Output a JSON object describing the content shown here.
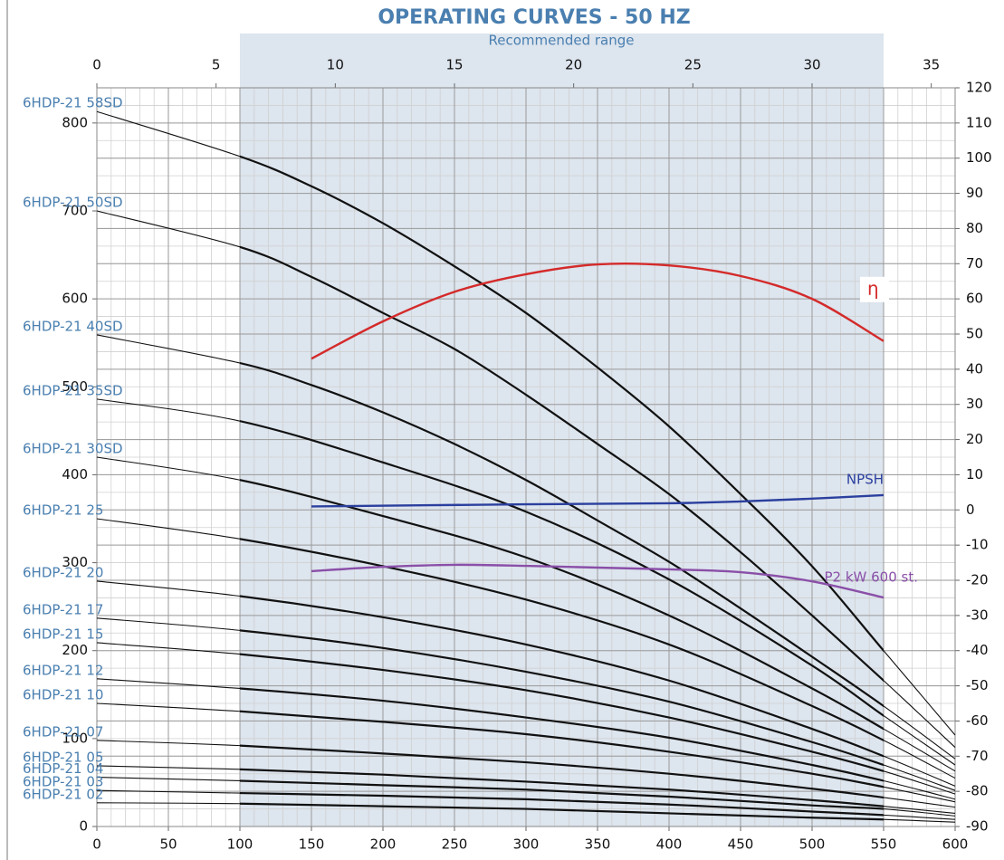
{
  "chart_data": {
    "type": "line",
    "title": "OPERATING CURVES - 50 HZ",
    "subtitle": "Recommended range",
    "recommended_range": [
      100,
      550
    ],
    "xlim": [
      0,
      600
    ],
    "xticks": [
      0,
      50,
      100,
      150,
      200,
      250,
      300,
      350,
      400,
      450,
      500,
      550,
      600
    ],
    "x2lim": [
      0,
      36
    ],
    "x2ticks": [
      0,
      5,
      10,
      15,
      20,
      25,
      30,
      35
    ],
    "ylim": [
      0,
      840
    ],
    "yticks": [
      0,
      100,
      200,
      300,
      400,
      500,
      600,
      700,
      800
    ],
    "y2lim": [
      -90,
      120
    ],
    "y2ticks": [
      -90,
      -80,
      -70,
      -60,
      -50,
      -40,
      -30,
      -20,
      -10,
      0,
      10,
      20,
      30,
      40,
      50,
      60,
      70,
      80,
      90,
      100,
      110,
      120
    ],
    "grid": true,
    "minor_grid": {
      "x": 10,
      "y2": 5
    },
    "series": [
      {
        "name": "6HDP-21 58SD",
        "color": "#111111",
        "x": [
          0,
          100,
          150,
          200,
          250,
          300,
          350,
          400,
          450,
          500,
          550,
          600
        ],
        "values": [
          813,
          762,
          728,
          686,
          637,
          584,
          522,
          455,
          378,
          296,
          200,
          104
        ]
      },
      {
        "name": "6HDP-21 50SD",
        "color": "#111111",
        "x": [
          0,
          100,
          150,
          200,
          250,
          300,
          350,
          400,
          450,
          500,
          550,
          600
        ],
        "values": [
          700,
          659,
          625,
          584,
          543,
          491,
          435,
          378,
          312,
          240,
          166,
          90
        ]
      },
      {
        "name": "6HDP-21 40SD",
        "color": "#111111",
        "x": [
          0,
          100,
          150,
          200,
          250,
          300,
          350,
          400,
          450,
          500,
          550,
          600
        ],
        "values": [
          559,
          527,
          502,
          471,
          435,
          394,
          348,
          301,
          248,
          193,
          137,
          77
        ]
      },
      {
        "name": "6HDP-21 35SD",
        "color": "#111111",
        "x": [
          0,
          100,
          200,
          300,
          400,
          500,
          550,
          600
        ],
        "values": [
          486,
          461,
          414,
          358,
          281,
          183,
          126,
          70
        ]
      },
      {
        "name": "6HDP-21 30SD",
        "color": "#111111",
        "x": [
          0,
          100,
          200,
          300,
          400,
          500,
          550,
          600
        ],
        "values": [
          420,
          394,
          353,
          306,
          240,
          157,
          111,
          63
        ]
      },
      {
        "name": "6HDP-21 25",
        "color": "#111111",
        "x": [
          0,
          100,
          200,
          300,
          400,
          500,
          550,
          600
        ],
        "values": [
          350,
          327,
          296,
          258,
          207,
          137,
          98,
          55
        ]
      },
      {
        "name": "6HDP-21 20",
        "color": "#111111",
        "x": [
          0,
          100,
          200,
          300,
          400,
          500,
          550,
          600
        ],
        "values": [
          279,
          262,
          238,
          207,
          166,
          111,
          80,
          46
        ]
      },
      {
        "name": "6HDP-21 17",
        "color": "#111111",
        "x": [
          0,
          100,
          200,
          300,
          400,
          500,
          550,
          600
        ],
        "values": [
          237,
          223,
          203,
          176,
          142,
          96,
          70,
          41
        ]
      },
      {
        "name": "6HDP-21 15",
        "color": "#111111",
        "x": [
          0,
          100,
          200,
          300,
          400,
          500,
          550,
          600
        ],
        "values": [
          209,
          196,
          178,
          155,
          124,
          85,
          63,
          37
        ]
      },
      {
        "name": "6HDP-21 12",
        "color": "#111111",
        "x": [
          0,
          100,
          200,
          300,
          400,
          500,
          550,
          600
        ],
        "values": [
          168,
          157,
          143,
          124,
          101,
          70,
          52,
          31
        ]
      },
      {
        "name": "6HDP-21 10",
        "color": "#111111",
        "x": [
          0,
          100,
          200,
          300,
          400,
          500,
          550,
          600
        ],
        "values": [
          140,
          131,
          119,
          105,
          85,
          60,
          45,
          28
        ]
      },
      {
        "name": "6HDP-21 07",
        "color": "#111111",
        "x": [
          0,
          100,
          200,
          300,
          400,
          500,
          550,
          600
        ],
        "values": [
          98,
          92,
          83,
          73,
          60,
          43,
          33,
          22
        ]
      },
      {
        "name": "6HDP-21 05",
        "color": "#111111",
        "x": [
          0,
          100,
          200,
          300,
          400,
          500,
          550,
          600
        ],
        "values": [
          69,
          65,
          59,
          51,
          42,
          30,
          23,
          15
        ]
      },
      {
        "name": "6HDP-21 04",
        "color": "#111111",
        "x": [
          0,
          100,
          200,
          300,
          400,
          500,
          550,
          600
        ],
        "values": [
          56,
          52,
          47,
          42,
          34,
          24,
          20,
          12
        ]
      },
      {
        "name": "6HDP-21 03",
        "color": "#111111",
        "x": [
          0,
          100,
          200,
          300,
          400,
          500,
          550,
          600
        ],
        "values": [
          41,
          38,
          35,
          31,
          25,
          17,
          13,
          8
        ]
      },
      {
        "name": "6HDP-21 02",
        "color": "#111111",
        "x": [
          0,
          100,
          200,
          300,
          400,
          500,
          550,
          600
        ],
        "values": [
          27,
          26,
          23,
          20,
          15,
          10,
          8,
          5
        ]
      },
      {
        "name": "η",
        "color": "#d42a2a",
        "axis": "y2",
        "x": [
          150,
          200,
          250,
          300,
          350,
          400,
          450,
          500,
          550
        ],
        "values": [
          43,
          53.6,
          62,
          67,
          69.8,
          69.5,
          66.5,
          60,
          48
        ]
      },
      {
        "name": "NPSH",
        "color": "#2b3f9e",
        "axis": "y2",
        "x": [
          150,
          300,
          400,
          450,
          500,
          550
        ],
        "values": [
          1,
          1.6,
          1.9,
          2.4,
          3.2,
          4.2
        ]
      },
      {
        "name": "P2 kW 600 st.",
        "color": "#8a4fa8",
        "axis": "y2",
        "x": [
          150,
          200,
          250,
          300,
          350,
          400,
          450,
          500,
          550
        ],
        "values": [
          -17.4,
          -16.2,
          -15.6,
          -15.9,
          -16.4,
          -16.9,
          -17.7,
          -20.3,
          -24.9
        ]
      }
    ]
  }
}
